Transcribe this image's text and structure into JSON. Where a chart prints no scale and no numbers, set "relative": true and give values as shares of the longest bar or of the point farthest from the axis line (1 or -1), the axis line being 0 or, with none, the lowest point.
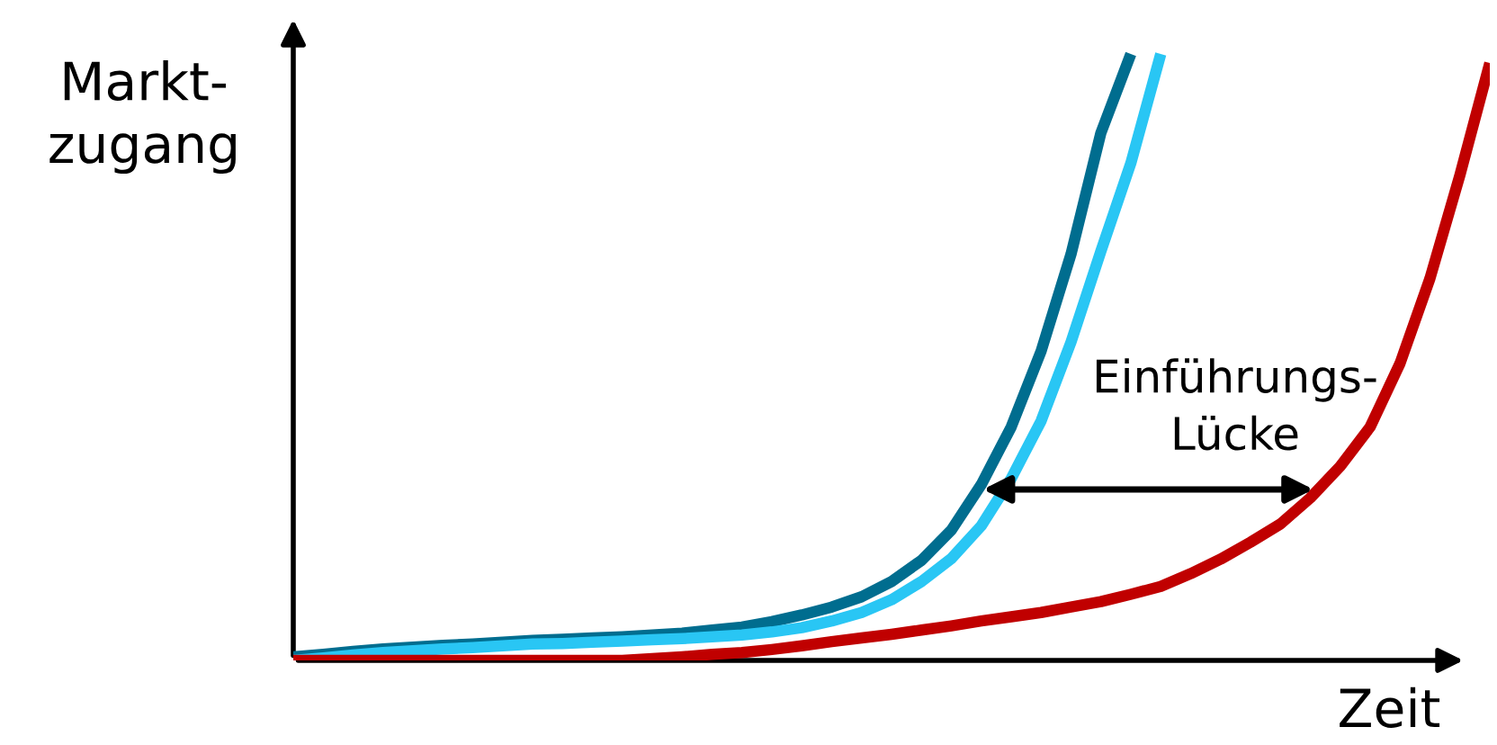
{
  "chart_data": {
    "type": "line",
    "relative": true,
    "xlabel": "Zeit",
    "ylabel": "Markt-\nzugang",
    "annotations": [
      "Einführungs-\nLücke"
    ],
    "marker": "none",
    "line_style": "solid",
    "categories": [
      null,
      null,
      null,
      null,
      null,
      null,
      null,
      null,
      null,
      null,
      null,
      null,
      null,
      null,
      null,
      null,
      null,
      null,
      null,
      null,
      null,
      null,
      null,
      null,
      null,
      null,
      null,
      null,
      null,
      null,
      null,
      null,
      null,
      null,
      null,
      null,
      null,
      null,
      null,
      null,
      null
    ],
    "series": [
      {
        "color": "#006d8f",
        "values": [
          0.006,
          0.01,
          0.015,
          0.019,
          0.022,
          0.025,
          0.027,
          0.03,
          0.033,
          0.035,
          0.037,
          0.039,
          0.042,
          0.045,
          0.05,
          0.055,
          0.064,
          0.075,
          0.088,
          0.105,
          0.13,
          0.165,
          0.215,
          0.29,
          0.385,
          0.51,
          0.67,
          0.87,
          1,
          null,
          null,
          null,
          null,
          null,
          null,
          null,
          null,
          null,
          null,
          null,
          null
        ]
      },
      {
        "color": "#29c6f4",
        "values": [
          0,
          0.004,
          0.009,
          0.013,
          0.016,
          0.019,
          0.021,
          0.024,
          0.027,
          0.028,
          0.03,
          0.032,
          0.034,
          0.036,
          0.039,
          0.042,
          0.047,
          0.054,
          0.065,
          0.079,
          0.1,
          0.13,
          0.168,
          0.222,
          0.3,
          0.395,
          0.525,
          0.675,
          0.82,
          1,
          null,
          null,
          null,
          null,
          null,
          null,
          null,
          null,
          null,
          null,
          null
        ]
      },
      {
        "color": "#c00000",
        "values": [
          0,
          0,
          0,
          0,
          0,
          0,
          0,
          0,
          0,
          0,
          0,
          0,
          0.003,
          0.006,
          0.01,
          0.013,
          0.018,
          0.024,
          0.031,
          0.037,
          0.043,
          0.05,
          0.057,
          0.065,
          0.072,
          0.079,
          0.088,
          0.097,
          0.109,
          0.122,
          0.143,
          0.167,
          0.195,
          0.225,
          0.268,
          0.32,
          0.385,
          0.49,
          0.63,
          0.8,
          0.985
        ]
      }
    ]
  }
}
